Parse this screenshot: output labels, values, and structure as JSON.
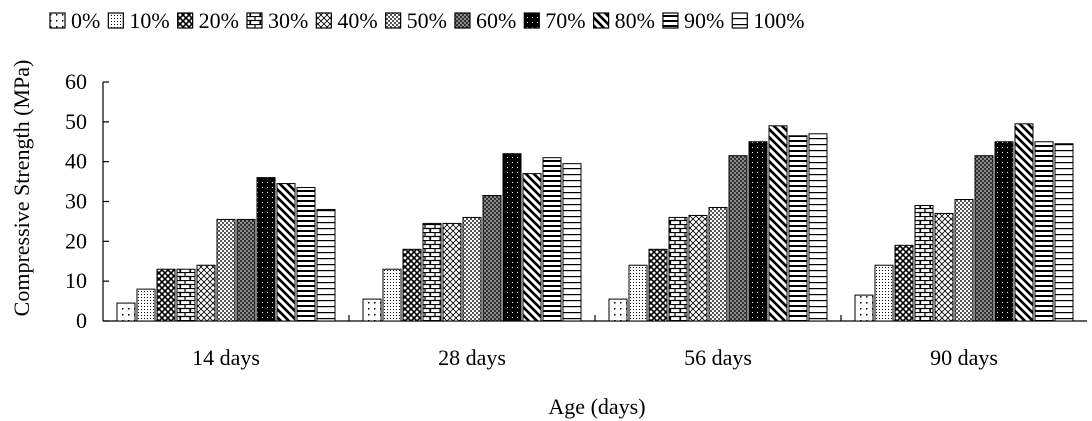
{
  "chart_data": {
    "type": "bar",
    "title": "",
    "xlabel": "Age (days)",
    "ylabel": "Compressive Strength (MPa)",
    "ylim": [
      0,
      60
    ],
    "yticks": [
      "0",
      "10",
      "20",
      "30",
      "40",
      "50",
      "60"
    ],
    "grid": false,
    "legend_position": "top",
    "categories": [
      "14 days",
      "28 days",
      "56 days",
      "90 days"
    ],
    "series": [
      {
        "name": "0%",
        "pattern": "sparse-dots",
        "values": [
          4.5,
          5.5,
          5.5,
          6.5
        ]
      },
      {
        "name": "10%",
        "pattern": "dense-dots",
        "values": [
          8,
          13,
          14,
          14
        ]
      },
      {
        "name": "20%",
        "pattern": "diamond-grid",
        "values": [
          13,
          18,
          18,
          19
        ]
      },
      {
        "name": "30%",
        "pattern": "brick",
        "values": [
          13,
          24.5,
          26,
          29
        ]
      },
      {
        "name": "40%",
        "pattern": "checker",
        "values": [
          14,
          24.5,
          26.5,
          27
        ]
      },
      {
        "name": "50%",
        "pattern": "medium-dots",
        "values": [
          25.5,
          26,
          28.5,
          30.5
        ]
      },
      {
        "name": "60%",
        "pattern": "dark-dots",
        "values": [
          25.5,
          31.5,
          41.5,
          41.5
        ]
      },
      {
        "name": "70%",
        "pattern": "black-dots",
        "values": [
          36,
          42,
          45,
          45
        ]
      },
      {
        "name": "80%",
        "pattern": "diagonal",
        "values": [
          34.5,
          37,
          49,
          49.5
        ]
      },
      {
        "name": "90%",
        "pattern": "thick-horiz",
        "values": [
          33.5,
          41,
          46.5,
          45
        ]
      },
      {
        "name": "100%",
        "pattern": "thin-horiz",
        "values": [
          28,
          39.5,
          47,
          44.5
        ]
      }
    ],
    "colors": {
      "bar_fill": "#ffffff",
      "ink": "#000000"
    }
  }
}
